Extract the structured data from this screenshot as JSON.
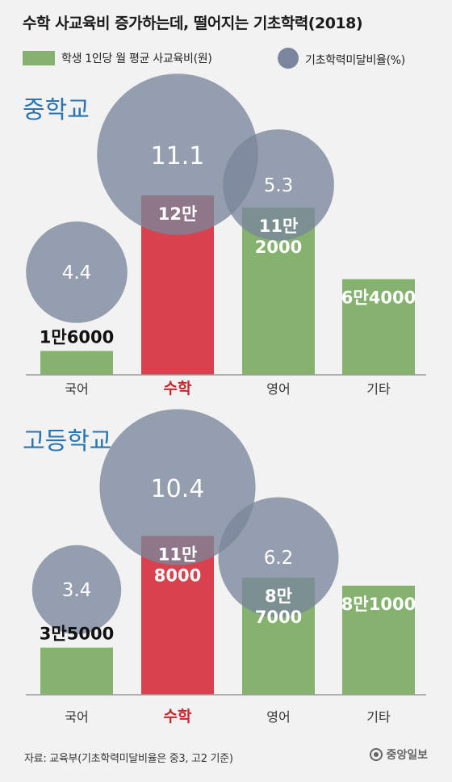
{
  "title": "수학 사교육비 증가하는데, 떨어지는 기초학력(2018)",
  "legend": {
    "bar_label": "학생 1인당 월 평균 사교육비(원)",
    "bubble_label": "기초학력미달비율(%)"
  },
  "colors": {
    "bar_default": "#85b26f",
    "bar_highlight": "#d9424d",
    "bubble": "#7a869b",
    "category_default": "#333333",
    "category_highlight": "#c6262e",
    "section_title": "#2775b2",
    "bubble_label": "#ffffff",
    "value_label_outside": "#111111",
    "value_label_inside": "#ffffff"
  },
  "source": "자료: 교육부(기초학력미달비율은 중3, 고2 기준)",
  "logo_text": "중앙일보",
  "chart_data": [
    {
      "type": "bar",
      "title": "중학교",
      "categories": [
        "국어",
        "수학",
        "영어",
        "기타"
      ],
      "highlight_category": "수학",
      "bar_series": {
        "name": "학생 1인당 월 평균 사교육비(원)",
        "values": [
          16000,
          120000,
          112000,
          64000
        ],
        "labels": [
          [
            "1만6000"
          ],
          [
            "12만"
          ],
          [
            "11만",
            "2000"
          ],
          [
            "6만4000"
          ]
        ]
      },
      "bubble_series": {
        "name": "기초학력미달비율(%)",
        "values": [
          4.4,
          11.1,
          5.3,
          null
        ],
        "labels": [
          "4.4",
          "11.1",
          "5.3",
          null
        ]
      },
      "ylim": [
        0,
        120000
      ]
    },
    {
      "type": "bar",
      "title": "고등학교",
      "categories": [
        "국어",
        "수학",
        "영어",
        "기타"
      ],
      "highlight_category": "수학",
      "bar_series": {
        "name": "학생 1인당 월 평균 사교육비(원)",
        "values": [
          35000,
          118000,
          87000,
          81000
        ],
        "labels": [
          [
            "3만5000"
          ],
          [
            "11만",
            "8000"
          ],
          [
            "8만",
            "7000"
          ],
          [
            "8만1000"
          ]
        ]
      },
      "bubble_series": {
        "name": "기초학력미달비율(%)",
        "values": [
          3.4,
          10.4,
          6.2,
          null
        ],
        "labels": [
          "3.4",
          "10.4",
          "6.2",
          null
        ]
      },
      "ylim": [
        0,
        120000
      ]
    }
  ]
}
